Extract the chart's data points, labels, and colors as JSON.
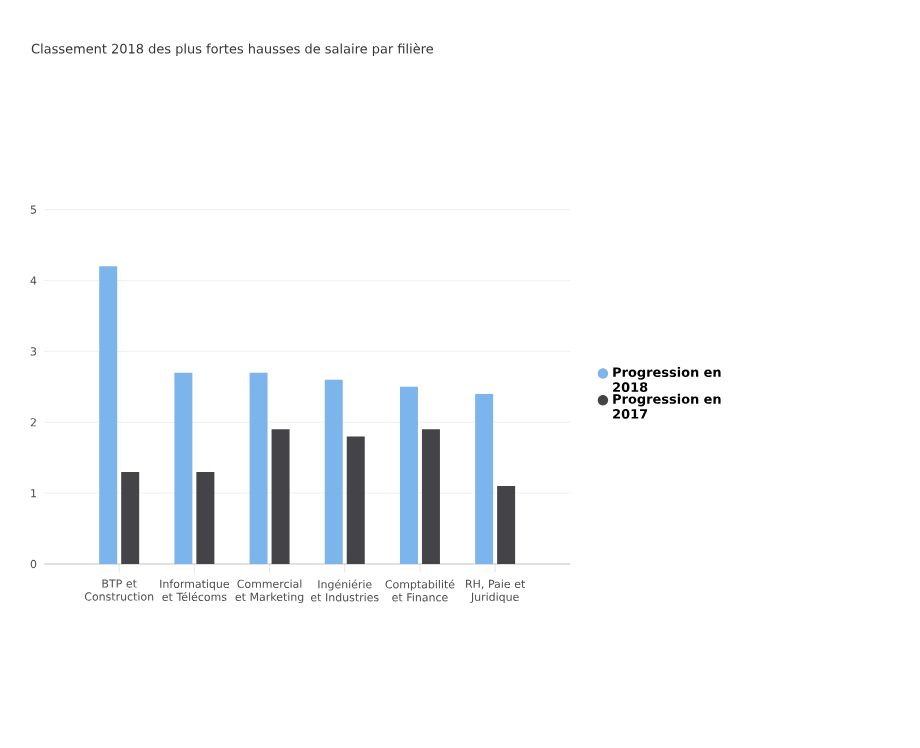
{
  "chart_data": {
    "type": "bar",
    "title": "Classement 2018 des plus fortes hausses de salaire par filière",
    "categories": [
      "BTP et Construction",
      "Informatique et Télécoms",
      "Commercial et Marketing",
      "Ingéniérie et Industries",
      "Comptabilité et Finance",
      "RH, Paie et Juridique"
    ],
    "series": [
      {
        "name": "Progression en 2018",
        "color": "#7cb5ec",
        "values": [
          4.2,
          2.7,
          2.7,
          2.6,
          2.5,
          2.4
        ]
      },
      {
        "name": "Progression en 2017",
        "color": "#434348",
        "values": [
          1.3,
          1.3,
          1.9,
          1.8,
          1.9,
          1.1
        ]
      }
    ],
    "ylim": [
      0,
      5
    ],
    "yticks": [
      0,
      1,
      2,
      3,
      4,
      5
    ],
    "grid": "y",
    "legend": "right"
  }
}
